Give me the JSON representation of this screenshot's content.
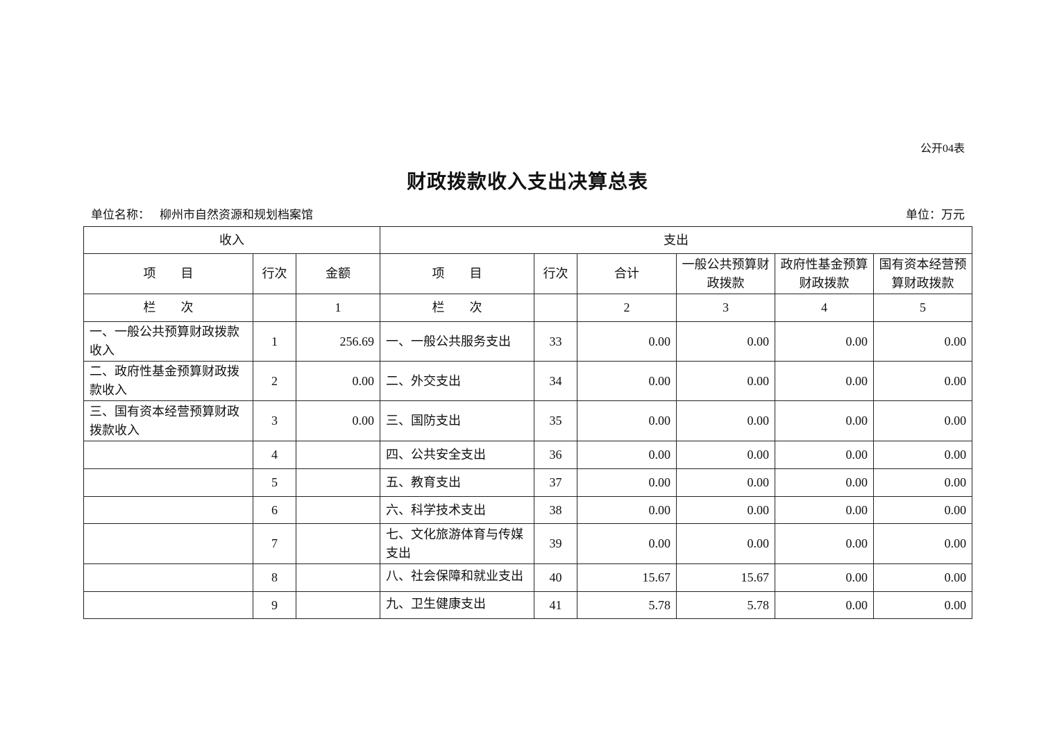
{
  "form_no": "公开04表",
  "title": "财政拨款收入支出决算总表",
  "unit_label": "单位名称：",
  "unit_name": "柳州市自然资源和规划档案馆",
  "unit_money": "单位：万元",
  "table": {
    "group_headers": {
      "income": "收入",
      "expense": "支出"
    },
    "headers": [
      "项　　目",
      "行次",
      "金额",
      "项　　目",
      "行次",
      "合计",
      "一般公共预算财政拨款",
      "政府性基金预算财政拨款",
      "国有资本经营预算财政拨款"
    ],
    "column_index_row": [
      "栏　　次",
      "",
      "1",
      "栏　　次",
      "",
      "2",
      "3",
      "4",
      "5"
    ],
    "rows": [
      [
        "一、一般公共预算财政拨款收入",
        "1",
        "256.69",
        "一、一般公共服务支出",
        "33",
        "0.00",
        "0.00",
        "0.00",
        "0.00"
      ],
      [
        "二、政府性基金预算财政拨款收入",
        "2",
        "0.00",
        "二、外交支出",
        "34",
        "0.00",
        "0.00",
        "0.00",
        "0.00"
      ],
      [
        "三、国有资本经营预算财政拨款收入",
        "3",
        "0.00",
        "三、国防支出",
        "35",
        "0.00",
        "0.00",
        "0.00",
        "0.00"
      ],
      [
        "",
        "4",
        "",
        "四、公共安全支出",
        "36",
        "0.00",
        "0.00",
        "0.00",
        "0.00"
      ],
      [
        "",
        "5",
        "",
        "五、教育支出",
        "37",
        "0.00",
        "0.00",
        "0.00",
        "0.00"
      ],
      [
        "",
        "6",
        "",
        "六、科学技术支出",
        "38",
        "0.00",
        "0.00",
        "0.00",
        "0.00"
      ],
      [
        "",
        "7",
        "",
        "七、文化旅游体育与传媒支出",
        "39",
        "0.00",
        "0.00",
        "0.00",
        "0.00"
      ],
      [
        "",
        "8",
        "",
        "八、社会保障和就业支出",
        "40",
        "15.67",
        "15.67",
        "0.00",
        "0.00"
      ],
      [
        "",
        "9",
        "",
        "九、卫生健康支出",
        "41",
        "5.78",
        "5.78",
        "0.00",
        "0.00"
      ]
    ]
  }
}
